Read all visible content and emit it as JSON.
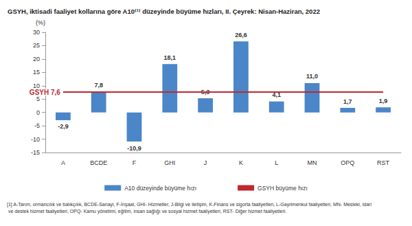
{
  "chart_data": {
    "type": "bar",
    "title": "GSYH, iktisadi faaliyet kollarına göre A10⁽¹⁾ düzeyinde büyüme hızları, II. Çeyrek: Nisan-Haziran, 2022",
    "y_label": "(%)",
    "categories": [
      "A",
      "BCDE",
      "F",
      "GHI",
      "J",
      "K",
      "L",
      "MN",
      "OPQ",
      "RST"
    ],
    "series": [
      {
        "name": "A10 düzeyinde büyüme hızı",
        "type": "bar",
        "color": "#4a86c8",
        "values": [
          -2.9,
          7.8,
          -10.9,
          18.1,
          5.3,
          26.6,
          4.1,
          11.0,
          1.7,
          1.9
        ],
        "value_labels": [
          "-2,9",
          "7,8",
          "-10,9",
          "18,1",
          "5,3",
          "26,6",
          "4,1",
          "11,0",
          "1,7",
          "1,9"
        ]
      },
      {
        "name": "GSYH büyüme hızı",
        "type": "line",
        "color": "#c0282d",
        "values": [
          7.6,
          7.6,
          7.6,
          7.6,
          7.6,
          7.6,
          7.6,
          7.6,
          7.6,
          7.6
        ]
      }
    ],
    "annotations": [
      {
        "text": "GSYH 7,6",
        "x": "A",
        "y": 7.6,
        "color": "#c0282d"
      }
    ],
    "footnote": "[1] A-Tarım, ormancılık ve balıkçılık, BCDE-Sanayi, F-İnşaat, GHI- Hizmetler, J-Bilgi ve iletişim, K-Finans ve sigorta faaliyetleri, L-Gayrimenkul faaliyetleri, MN- Mesleki, idari ve destek hizmet faaliyetleri, OPQ- Kamu yönetimi, eğitim, insan sağlığı ve sosyal hizmet faaliyetleri, RST- Diğer hizmet faaliyetleri.",
    "ylim": [
      -15,
      30
    ],
    "yticks": [
      -15,
      -10,
      -5,
      0,
      5,
      10,
      15,
      20,
      25,
      30
    ],
    "grid": false,
    "legend": "bottom",
    "data_labels": true
  }
}
